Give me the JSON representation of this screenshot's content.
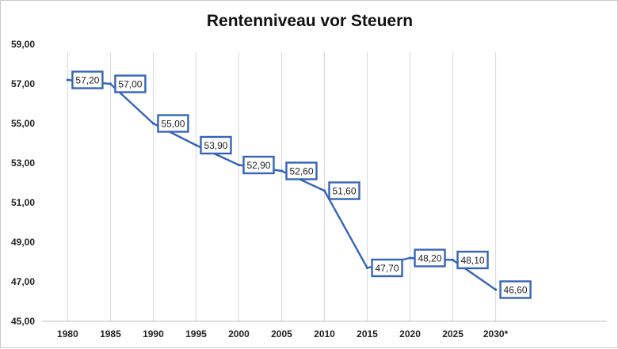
{
  "chart_data": {
    "type": "line",
    "title": "Rentenniveau vor Steuern",
    "xlabel": "",
    "ylabel": "",
    "categories": [
      "1980",
      "1985",
      "1990",
      "1995",
      "2000",
      "2005",
      "2010",
      "2015",
      "2020",
      "2025",
      "2030*"
    ],
    "x_years": [
      1980,
      1985,
      1990,
      1995,
      2000,
      2005,
      2010,
      2015,
      2020,
      2025,
      2030
    ],
    "series": [
      {
        "name": "Rentenniveau vor Steuern",
        "color": "#3665B8",
        "points": [
          {
            "x": 1980,
            "y": 57.2,
            "label": "57,20"
          },
          {
            "x": 1985,
            "y": 57.0,
            "label": "57,00"
          },
          {
            "x": 1990,
            "y": 55.0,
            "label": "55,00"
          },
          {
            "x": 1995,
            "y": 53.9,
            "label": "53,90"
          },
          {
            "x": 2000,
            "y": 52.9,
            "label": "52,90"
          },
          {
            "x": 2005,
            "y": 52.6,
            "label": "52,60"
          },
          {
            "x": 2010,
            "y": 51.6,
            "label": "51,60"
          },
          {
            "x": 2015,
            "y": 47.7,
            "label": "47,70"
          },
          {
            "x": 2020,
            "y": 48.2,
            "label": "48,20"
          },
          {
            "x": 2025,
            "y": 48.1,
            "label": "48,10"
          },
          {
            "x": 2030,
            "y": 46.6,
            "label": "46,60"
          }
        ]
      }
    ],
    "y_ticks": [
      {
        "value": 45,
        "label": "45,00"
      },
      {
        "value": 47,
        "label": "47,00"
      },
      {
        "value": 49,
        "label": "49,00"
      },
      {
        "value": 51,
        "label": "51,00"
      },
      {
        "value": 53,
        "label": "53,00"
      },
      {
        "value": 55,
        "label": "55,00"
      },
      {
        "value": 57,
        "label": "57,00"
      },
      {
        "value": 59,
        "label": "59,00"
      }
    ],
    "ylim": [
      45,
      59
    ],
    "xlim": [
      1977,
      2043
    ],
    "grid": "vertical",
    "legend": "none",
    "colors": {
      "line": "#3665B8",
      "label_border": "#3665B8",
      "grid": "#d9d9d9",
      "axis": "#bfbfbf"
    }
  }
}
